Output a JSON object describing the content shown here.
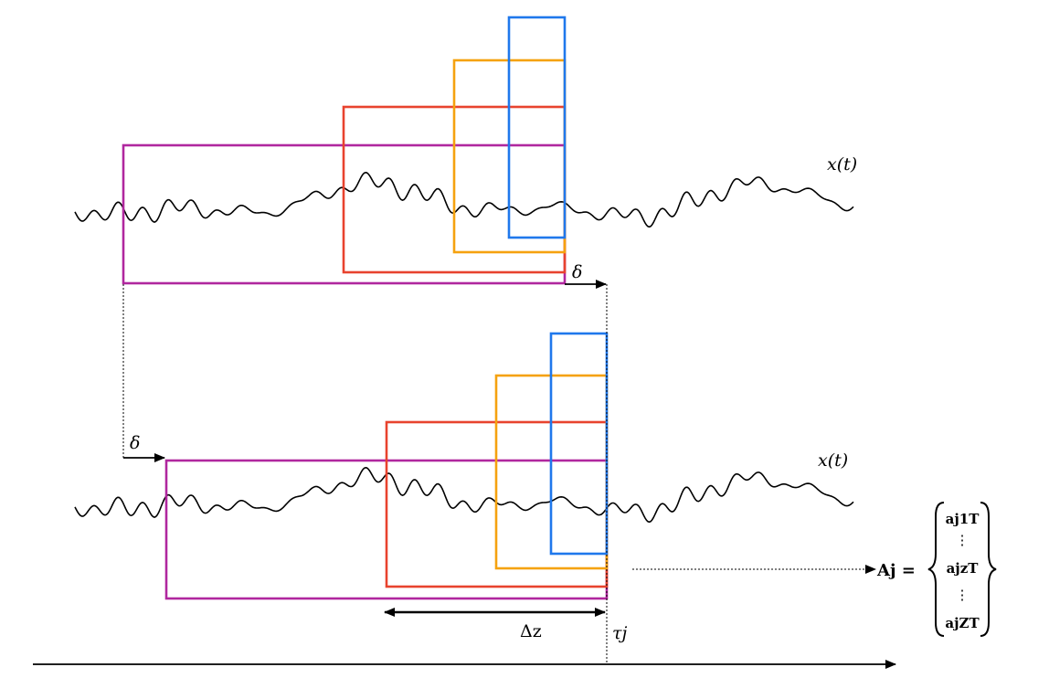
{
  "labels": {
    "signal_top": "x(t)",
    "signal_bottom": "x(t)",
    "shift_top": "δ",
    "shift_bottom": "δ",
    "window_length": "Δz",
    "time_marker": "τj",
    "matrix_lhs": "Aj =",
    "matrix_rows": [
      "aj1T",
      "⋮",
      "ajzT",
      "⋮",
      "ajZT"
    ]
  },
  "colors": {
    "purple": "#b0279e",
    "red": "#e8432e",
    "orange": "#f5a20f",
    "blue": "#1f78ec",
    "line": "#000000"
  }
}
